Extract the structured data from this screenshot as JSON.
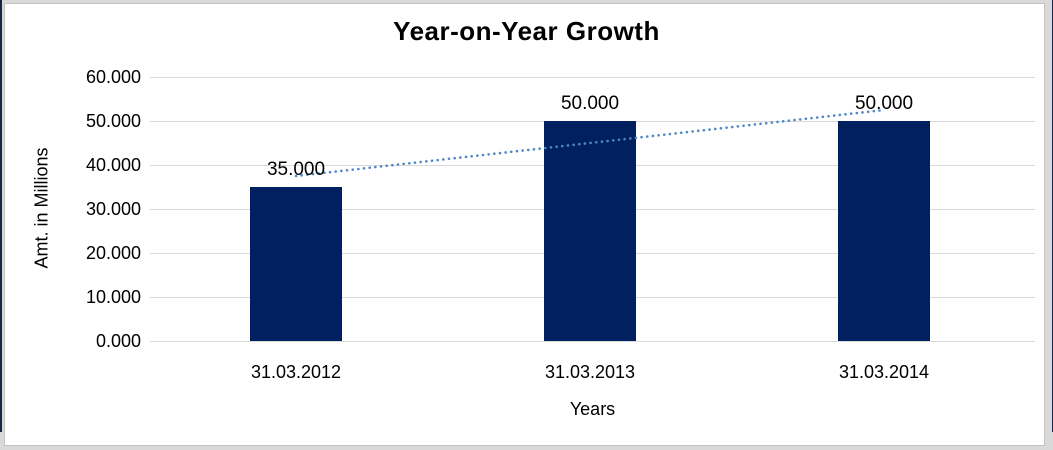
{
  "chart_data": {
    "type": "bar",
    "title": "Year-on-Year Growth",
    "categories": [
      "31.03.2012",
      "31.03.2013",
      "31.03.2014"
    ],
    "values": [
      35,
      50,
      50
    ],
    "data_labels": [
      "35.000",
      "50.000",
      "50.000"
    ],
    "xlabel": "Years",
    "ylabel": "Amt. in Millions",
    "ylim": [
      0,
      60
    ],
    "ytick_step": 10,
    "ytick_labels": [
      "0.000",
      "10.000",
      "20.000",
      "30.000",
      "40.000",
      "50.000",
      "60.000"
    ],
    "grid": true,
    "legend": "none",
    "bar_color": "#002060",
    "gridline_color": "#d9d9d9",
    "trendline": {
      "type": "linear",
      "style": "dotted",
      "color": "#4f86c6"
    }
  }
}
